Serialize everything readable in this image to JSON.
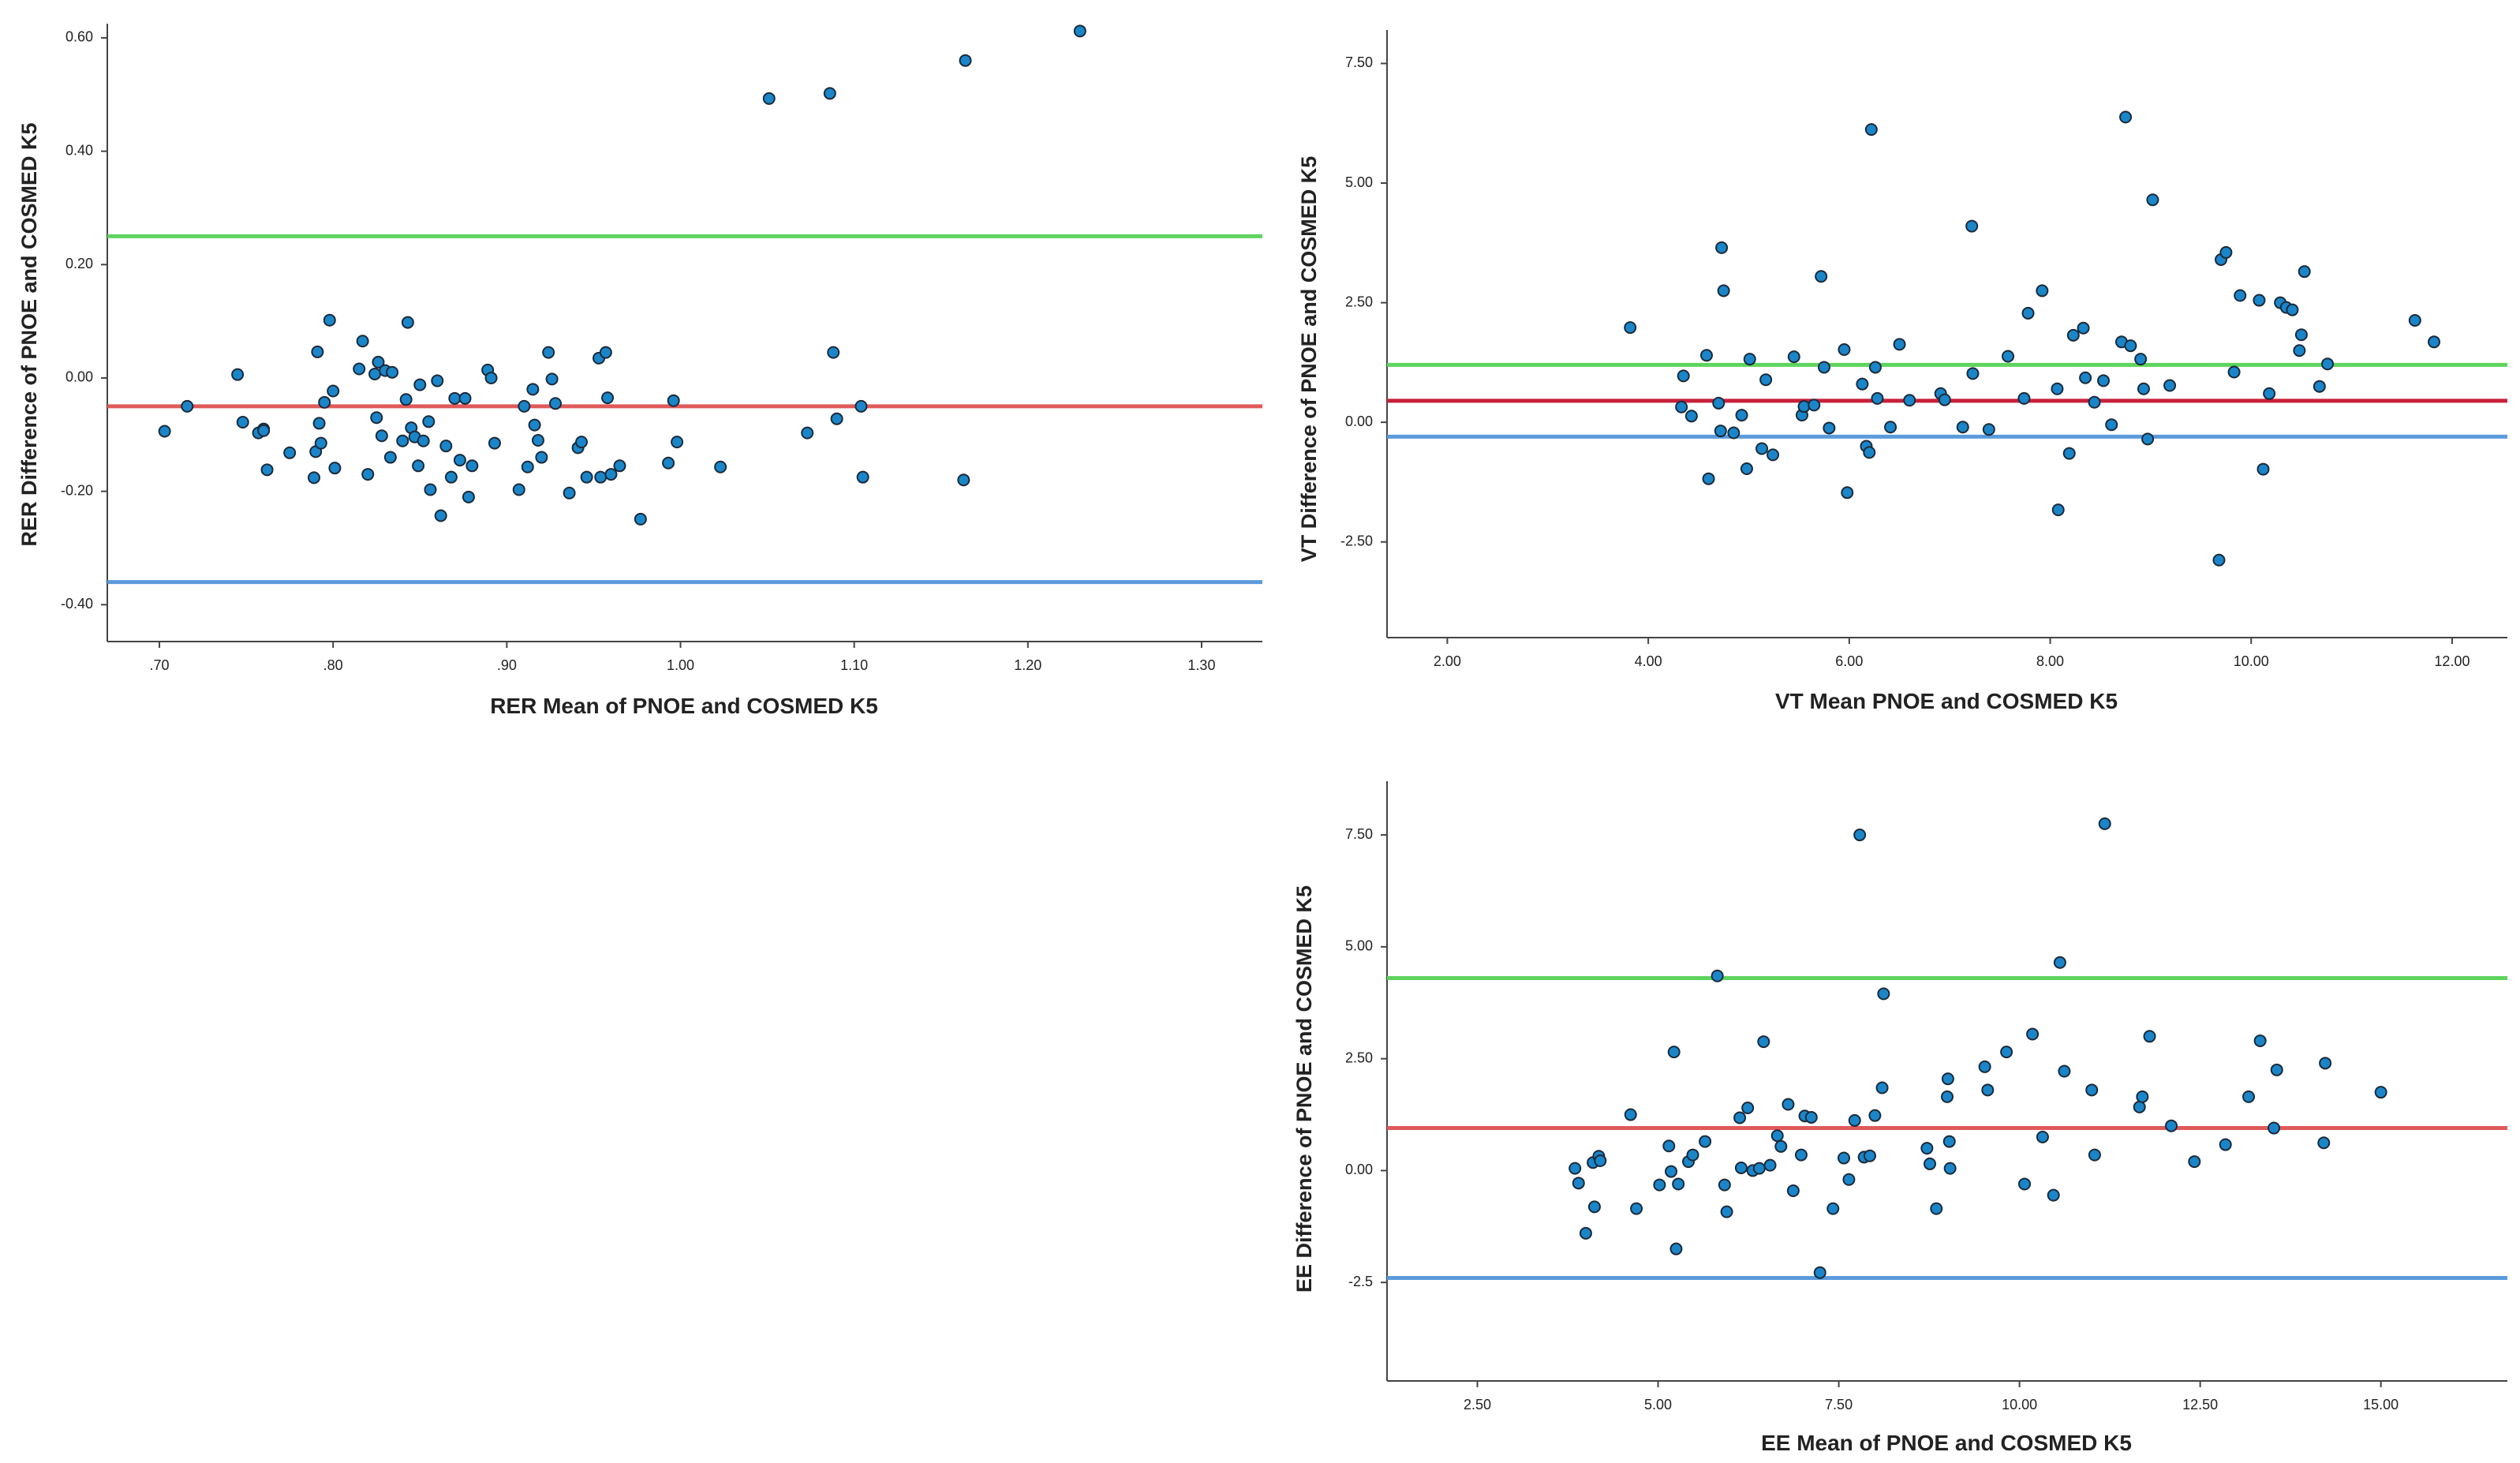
{
  "colors": {
    "upper_loa": "#5ed35e",
    "mean_bias": "#e05a5a",
    "lower_loa": "#5b9bdc",
    "point": "#1a86c9"
  },
  "chart_data": [
    {
      "id": "rer",
      "type": "scatter",
      "title": "",
      "xlabel": "RER Mean of PNOE and COSMED K5",
      "ylabel": "RER Difference of PNOE and COSMED K5",
      "xlim": [
        0.67,
        1.335
      ],
      "ylim": [
        -0.465,
        0.625
      ],
      "xticks": [
        0.7,
        0.8,
        0.9,
        1.0,
        1.1,
        1.2,
        1.3
      ],
      "xtick_labels": [
        ".70",
        ".80",
        ".90",
        "1.00",
        "1.10",
        "1.20",
        "1.30"
      ],
      "yticks": [
        -0.4,
        -0.2,
        0.0,
        0.2,
        0.4,
        0.6
      ],
      "ytick_labels": [
        "-0.40",
        "-0.20",
        "0.00",
        "0.20",
        "0.40",
        "0.60"
      ],
      "reference_lines": [
        {
          "name": "upper_loa",
          "y": 0.25,
          "color": "#5ed35e"
        },
        {
          "name": "mean_bias",
          "y": -0.05,
          "color": "#e05a5a"
        },
        {
          "name": "lower_loa",
          "y": -0.36,
          "color": "#5b9bdc"
        }
      ],
      "x": [
        0.703,
        0.716,
        0.745,
        0.748,
        0.757,
        0.76,
        0.76,
        0.762,
        0.775,
        0.789,
        0.79,
        0.791,
        0.792,
        0.793,
        0.795,
        0.798,
        0.8,
        0.801,
        0.815,
        0.817,
        0.82,
        0.824,
        0.825,
        0.826,
        0.828,
        0.83,
        0.833,
        0.834,
        0.84,
        0.842,
        0.843,
        0.845,
        0.847,
        0.849,
        0.85,
        0.852,
        0.855,
        0.856,
        0.86,
        0.862,
        0.865,
        0.868,
        0.87,
        0.873,
        0.876,
        0.878,
        0.88,
        0.889,
        0.891,
        0.893,
        0.907,
        0.91,
        0.912,
        0.915,
        0.916,
        0.918,
        0.92,
        0.924,
        0.926,
        0.928,
        0.936,
        0.941,
        0.943,
        0.946,
        0.953,
        0.954,
        0.957,
        0.958,
        0.96,
        0.965,
        0.977,
        0.993,
        0.996,
        0.998,
        1.023,
        1.051,
        1.073,
        1.086,
        1.088,
        1.09,
        1.104,
        1.105,
        1.163,
        1.164,
        1.23
      ],
      "y": [
        -0.094,
        -0.05,
        0.006,
        -0.078,
        -0.097,
        -0.09,
        -0.093,
        -0.162,
        -0.132,
        -0.176,
        -0.13,
        0.046,
        -0.08,
        -0.115,
        -0.043,
        0.102,
        -0.023,
        -0.159,
        0.016,
        0.065,
        -0.17,
        0.007,
        -0.07,
        0.028,
        -0.102,
        0.013,
        -0.14,
        0.01,
        -0.111,
        -0.038,
        0.098,
        -0.088,
        -0.104,
        -0.155,
        -0.012,
        -0.111,
        -0.077,
        -0.197,
        -0.005,
        -0.243,
        -0.12,
        -0.175,
        -0.036,
        -0.145,
        -0.036,
        -0.21,
        -0.155,
        0.014,
        0.0,
        -0.115,
        -0.197,
        -0.05,
        -0.157,
        -0.02,
        -0.083,
        -0.11,
        -0.14,
        0.045,
        -0.002,
        -0.045,
        -0.203,
        -0.123,
        -0.113,
        -0.175,
        0.035,
        -0.175,
        0.045,
        -0.035,
        -0.17,
        -0.155,
        -0.249,
        -0.15,
        -0.04,
        -0.113,
        -0.157,
        0.493,
        -0.097,
        0.502,
        0.045,
        -0.072,
        -0.05,
        -0.175,
        -0.18,
        0.56,
        0.612
      ]
    },
    {
      "id": "vt",
      "type": "scatter",
      "title": "",
      "xlabel": "VT Mean PNOE and COSMED K5",
      "ylabel": "VT Difference of PNOE and COSMED K5",
      "xlim": [
        1.4,
        12.55
      ],
      "ylim": [
        -4.5,
        8.2
      ],
      "xticks": [
        2.0,
        4.0,
        6.0,
        8.0,
        10.0,
        12.0
      ],
      "xtick_labels": [
        "2.00",
        "4.00",
        "6.00",
        "8.00",
        "10.00",
        "12.00"
      ],
      "yticks": [
        -2.5,
        0.0,
        2.5,
        5.0,
        7.5
      ],
      "ytick_labels": [
        "-2.50",
        "0.00",
        "2.50",
        "5.00",
        "7.50"
      ],
      "reference_lines": [
        {
          "name": "upper_loa",
          "y": 1.2,
          "color": "#5ed35e"
        },
        {
          "name": "mean_bias",
          "y": 0.45,
          "color": "#c8203a"
        },
        {
          "name": "lower_loa",
          "y": -0.3,
          "color": "#5b9bdc"
        }
      ],
      "x": [
        3.82,
        4.33,
        4.35,
        4.43,
        4.58,
        4.6,
        4.7,
        4.72,
        4.73,
        4.75,
        4.85,
        4.93,
        4.98,
        5.01,
        5.13,
        5.17,
        5.24,
        5.45,
        5.53,
        5.55,
        5.65,
        5.72,
        5.75,
        5.8,
        5.95,
        5.98,
        6.13,
        6.17,
        6.2,
        6.22,
        6.26,
        6.28,
        6.41,
        6.5,
        6.6,
        6.91,
        6.95,
        7.13,
        7.22,
        7.23,
        7.39,
        7.58,
        7.74,
        7.78,
        7.92,
        8.07,
        8.08,
        8.19,
        8.23,
        8.33,
        8.35,
        8.44,
        8.53,
        8.61,
        8.71,
        8.75,
        8.8,
        8.9,
        8.93,
        8.97,
        9.02,
        9.19,
        9.68,
        9.7,
        9.75,
        9.83,
        9.89,
        10.08,
        10.12,
        10.18,
        10.29,
        10.35,
        10.41,
        10.48,
        10.5,
        10.53,
        10.68,
        10.76,
        11.63,
        11.82
      ],
      "y": [
        1.98,
        0.32,
        0.97,
        0.13,
        1.4,
        -1.18,
        0.4,
        -0.18,
        3.65,
        2.75,
        -0.22,
        0.15,
        -0.97,
        1.32,
        -0.55,
        0.89,
        -0.68,
        1.37,
        0.15,
        0.33,
        0.36,
        3.05,
        1.15,
        -0.12,
        1.52,
        -1.47,
        0.8,
        -0.5,
        -0.63,
        6.12,
        1.15,
        0.5,
        -0.1,
        1.63,
        0.46,
        0.6,
        0.47,
        -0.1,
        4.1,
        1.02,
        -0.15,
        1.38,
        0.5,
        2.28,
        2.75,
        0.7,
        -1.83,
        -0.65,
        1.82,
        1.97,
        0.93,
        0.42,
        0.87,
        -0.05,
        1.68,
        6.38,
        1.6,
        1.32,
        0.7,
        -0.35,
        4.65,
        0.77,
        -2.88,
        3.4,
        3.55,
        1.05,
        2.65,
        2.55,
        -0.98,
        0.6,
        2.5,
        2.4,
        2.35,
        1.5,
        1.83,
        3.15,
        0.75,
        1.22,
        2.13,
        1.68
      ]
    },
    {
      "id": "ee",
      "type": "scatter",
      "title": "",
      "xlabel": "EE Mean of PNOE and COSMED K5",
      "ylabel": "EE Difference of PNOE and COSMED K5",
      "xlim": [
        1.25,
        16.75
      ],
      "ylim": [
        -4.7,
        8.7
      ],
      "xticks": [
        2.5,
        5.0,
        7.5,
        10.0,
        12.5,
        15.0
      ],
      "xtick_labels": [
        "2.50",
        "5.00",
        "7.50",
        "10.00",
        "12.50",
        "15.00"
      ],
      "yticks": [
        -2.5,
        0.0,
        2.5,
        5.0,
        7.5
      ],
      "ytick_labels": [
        "-2.5",
        "0.00",
        "2.50",
        "5.00",
        "7.50"
      ],
      "reference_lines": [
        {
          "name": "upper_loa",
          "y": 4.3,
          "color": "#5ed35e"
        },
        {
          "name": "mean_bias",
          "y": 0.95,
          "color": "#e05a5a"
        },
        {
          "name": "lower_loa",
          "y": -2.4,
          "color": "#5b9bdc"
        }
      ],
      "x": [
        3.85,
        3.9,
        4.0,
        4.1,
        4.12,
        4.18,
        4.2,
        4.62,
        4.7,
        5.02,
        5.15,
        5.18,
        5.22,
        5.25,
        5.28,
        5.42,
        5.48,
        5.65,
        5.82,
        5.92,
        5.95,
        6.13,
        6.15,
        6.24,
        6.31,
        6.4,
        6.46,
        6.55,
        6.65,
        6.7,
        6.8,
        6.87,
        6.98,
        7.03,
        7.12,
        7.24,
        7.42,
        7.57,
        7.64,
        7.72,
        7.79,
        7.85,
        7.93,
        8.0,
        8.1,
        8.12,
        8.72,
        8.76,
        8.85,
        9.0,
        9.01,
        9.03,
        9.04,
        9.52,
        9.56,
        9.82,
        10.07,
        10.18,
        10.32,
        10.47,
        10.56,
        10.62,
        11.0,
        11.04,
        11.18,
        11.66,
        11.7,
        11.8,
        12.1,
        12.42,
        12.85,
        13.17,
        13.33,
        13.52,
        13.56,
        14.21,
        14.23,
        15.0
      ],
      "y": [
        0.05,
        -0.28,
        -1.4,
        0.18,
        -0.81,
        0.32,
        0.22,
        1.25,
        -0.85,
        -0.32,
        0.55,
        -0.02,
        2.65,
        -1.75,
        -0.3,
        0.2,
        0.35,
        0.65,
        4.35,
        -0.32,
        -0.92,
        1.18,
        0.06,
        1.4,
        0.0,
        0.05,
        2.88,
        0.12,
        0.78,
        0.54,
        1.48,
        -0.45,
        0.35,
        1.22,
        1.19,
        -2.28,
        -0.85,
        0.28,
        -0.2,
        1.12,
        7.5,
        0.3,
        0.33,
        1.23,
        1.85,
        3.95,
        0.5,
        0.15,
        -0.85,
        1.65,
        2.05,
        0.65,
        0.05,
        2.32,
        1.8,
        2.65,
        -0.3,
        3.05,
        0.75,
        -0.55,
        4.65,
        2.22,
        1.8,
        0.35,
        7.75,
        1.42,
        1.65,
        3.0,
        1.0,
        0.2,
        0.58,
        1.65,
        2.9,
        0.95,
        2.25,
        0.62,
        2.4,
        1.75
      ]
    }
  ]
}
